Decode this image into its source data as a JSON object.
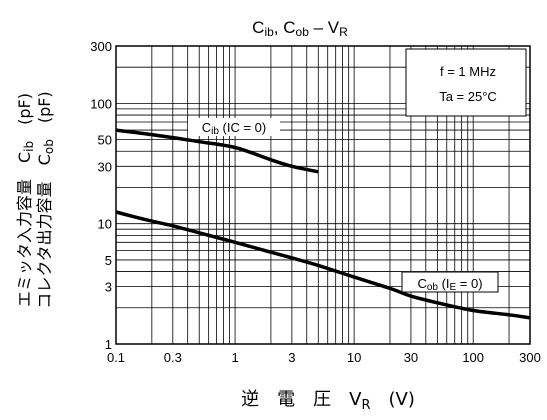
{
  "chart_data": {
    "type": "line",
    "title": "Cib, Cob – VR",
    "x_scale": "log",
    "y_scale": "log",
    "xlim": [
      0.1,
      300
    ],
    "ylim": [
      1,
      300
    ],
    "x_tick_labels": [
      "0.1",
      "0.3",
      "1",
      "3",
      "10",
      "30",
      "100",
      "300"
    ],
    "x_tick_values": [
      0.1,
      0.3,
      1,
      3,
      10,
      30,
      100,
      300
    ],
    "y_tick_labels": [
      "1",
      "3",
      "5",
      "10",
      "30",
      "50",
      "100",
      "300"
    ],
    "y_tick_values": [
      1,
      3,
      5,
      10,
      30,
      50,
      100,
      300
    ],
    "xlabel": "逆 電 圧 VR (V)",
    "ylabel_line1": "エミッタ入力容量 Cib (pF)",
    "ylabel_line2": "コレクタ出力容量 Cob (pF)",
    "grid": true,
    "conditions": [
      "f = 1 MHz",
      "Ta = 25°C"
    ],
    "series": [
      {
        "name": "Cib (IC = 0)",
        "x": [
          0.1,
          0.2,
          0.3,
          0.5,
          1,
          2,
          3,
          5
        ],
        "y": [
          60,
          55,
          52,
          48,
          43,
          34,
          30,
          27
        ]
      },
      {
        "name": "Cob (IE = 0)",
        "x": [
          0.1,
          0.2,
          0.3,
          0.5,
          1,
          2,
          3,
          5,
          10,
          20,
          30,
          50,
          100,
          200,
          300
        ],
        "y": [
          12.5,
          10.5,
          9.6,
          8.4,
          7,
          5.8,
          5.2,
          4.5,
          3.6,
          2.9,
          2.5,
          2.2,
          1.9,
          1.75,
          1.65
        ]
      }
    ]
  }
}
